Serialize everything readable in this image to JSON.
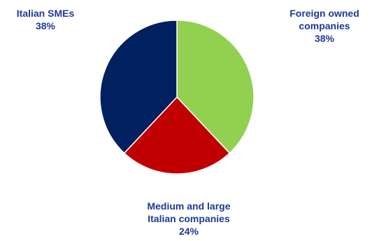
{
  "chart_data": {
    "type": "pie",
    "slices": [
      {
        "label_lines": [
          "Foreign owned",
          "companies"
        ],
        "value_label": "38%",
        "value": 38,
        "color": "#92d050"
      },
      {
        "label_lines": [
          "Medium and large",
          "Italian companies"
        ],
        "value_label": "24%",
        "value": 24,
        "color": "#c00000"
      },
      {
        "label_lines": [
          "Italian SMEs"
        ],
        "value_label": "38%",
        "value": 38,
        "color": "#002060"
      }
    ],
    "start_angle_deg": 0,
    "direction": "clockwise",
    "label_color": "#1f3a93"
  }
}
